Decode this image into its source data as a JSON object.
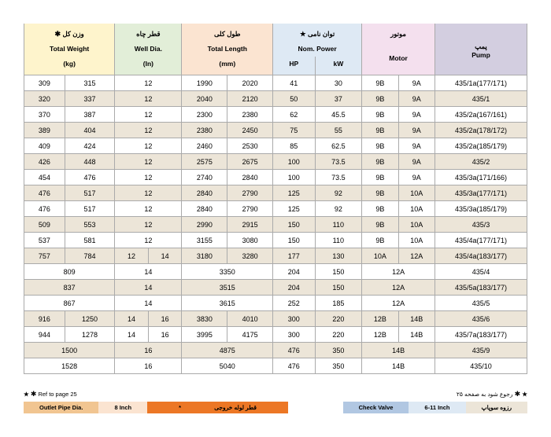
{
  "headers": {
    "weight_fa": "وزن کل",
    "weight_en": "Total Weight",
    "weight_unit": "(kg)",
    "welldia_fa": "قطر چاه",
    "welldia_en": "Well Dia.",
    "welldia_unit": "(In)",
    "length_fa": "طول کلی",
    "length_en": "Total Length",
    "length_unit": "(mm)",
    "power_fa": "توان نامی",
    "power_en": "Nom. Power",
    "power_hp": "HP",
    "power_kw": "kW",
    "motor_fa": "موتور",
    "motor_en": "Motor",
    "pump_fa": "پمپ",
    "pump_en": "Pump",
    "gear": "✱",
    "star": "★"
  },
  "rows": [
    {
      "w": [
        "309",
        "315"
      ],
      "d": [
        "12"
      ],
      "l": [
        "1990",
        "2020"
      ],
      "hp": "41",
      "kw": "30",
      "m": [
        "9B",
        "9A"
      ],
      "p": "435/1a(177/171)"
    },
    {
      "w": [
        "320",
        "337"
      ],
      "d": [
        "12"
      ],
      "l": [
        "2040",
        "2120"
      ],
      "hp": "50",
      "kw": "37",
      "m": [
        "9B",
        "9A"
      ],
      "p": "435/1"
    },
    {
      "w": [
        "370",
        "387"
      ],
      "d": [
        "12"
      ],
      "l": [
        "2300",
        "2380"
      ],
      "hp": "62",
      "kw": "45.5",
      "m": [
        "9B",
        "9A"
      ],
      "p": "435/2a(167/161)"
    },
    {
      "w": [
        "389",
        "404"
      ],
      "d": [
        "12"
      ],
      "l": [
        "2380",
        "2450"
      ],
      "hp": "75",
      "kw": "55",
      "m": [
        "9B",
        "9A"
      ],
      "p": "435/2a(178/172)"
    },
    {
      "w": [
        "409",
        "424"
      ],
      "d": [
        "12"
      ],
      "l": [
        "2460",
        "2530"
      ],
      "hp": "85",
      "kw": "62.5",
      "m": [
        "9B",
        "9A"
      ],
      "p": "435/2a(185/179)"
    },
    {
      "w": [
        "426",
        "448"
      ],
      "d": [
        "12"
      ],
      "l": [
        "2575",
        "2675"
      ],
      "hp": "100",
      "kw": "73.5",
      "m": [
        "9B",
        "9A"
      ],
      "p": "435/2"
    },
    {
      "w": [
        "454",
        "476"
      ],
      "d": [
        "12"
      ],
      "l": [
        "2740",
        "2840"
      ],
      "hp": "100",
      "kw": "73.5",
      "m": [
        "9B",
        "9A"
      ],
      "p": "435/3a(171/166)"
    },
    {
      "w": [
        "476",
        "517"
      ],
      "d": [
        "12"
      ],
      "l": [
        "2840",
        "2790"
      ],
      "hp": "125",
      "kw": "92",
      "m": [
        "9B",
        "10A"
      ],
      "p": "435/3a(177/171)"
    },
    {
      "w": [
        "476",
        "517"
      ],
      "d": [
        "12"
      ],
      "l": [
        "2840",
        "2790"
      ],
      "hp": "125",
      "kw": "92",
      "m": [
        "9B",
        "10A"
      ],
      "p": "435/3a(185/179)"
    },
    {
      "w": [
        "509",
        "553"
      ],
      "d": [
        "12"
      ],
      "l": [
        "2990",
        "2915"
      ],
      "hp": "150",
      "kw": "110",
      "m": [
        "9B",
        "10A"
      ],
      "p": "435/3"
    },
    {
      "w": [
        "537",
        "581"
      ],
      "d": [
        "12"
      ],
      "l": [
        "3155",
        "3080"
      ],
      "hp": "150",
      "kw": "110",
      "m": [
        "9B",
        "10A"
      ],
      "p": "435/4a(177/171)"
    },
    {
      "w": [
        "757",
        "784"
      ],
      "d": [
        "12",
        "14"
      ],
      "l": [
        "3180",
        "3280"
      ],
      "hp": "177",
      "kw": "130",
      "m": [
        "10A",
        "12A"
      ],
      "p": "435/4a(183/177)"
    },
    {
      "w": [
        "809"
      ],
      "d": [
        "14"
      ],
      "l": [
        "3350"
      ],
      "hp": "204",
      "kw": "150",
      "m": [
        "12A"
      ],
      "p": "435/4"
    },
    {
      "w": [
        "837"
      ],
      "d": [
        "14"
      ],
      "l": [
        "3515"
      ],
      "hp": "204",
      "kw": "150",
      "m": [
        "12A"
      ],
      "p": "435/5a(183/177)"
    },
    {
      "w": [
        "867"
      ],
      "d": [
        "14"
      ],
      "l": [
        "3615"
      ],
      "hp": "252",
      "kw": "185",
      "m": [
        "12A"
      ],
      "p": "435/5"
    },
    {
      "w": [
        "916",
        "1250"
      ],
      "d": [
        "14",
        "16"
      ],
      "l": [
        "3830",
        "4010"
      ],
      "hp": "300",
      "kw": "220",
      "m": [
        "12B",
        "14B"
      ],
      "p": "435/6"
    },
    {
      "w": [
        "944",
        "1278"
      ],
      "d": [
        "14",
        "16"
      ],
      "l": [
        "3995",
        "4175"
      ],
      "hp": "300",
      "kw": "220",
      "m": [
        "12B",
        "14B"
      ],
      "p": "435/7a(183/177)"
    },
    {
      "w": [
        "1500"
      ],
      "d": [
        "16"
      ],
      "l": [
        "4875"
      ],
      "hp": "476",
      "kw": "350",
      "m": [
        "14B"
      ],
      "p": "435/9"
    },
    {
      "w": [
        "1528"
      ],
      "d": [
        "16"
      ],
      "l": [
        "5040"
      ],
      "hp": "476",
      "kw": "350",
      "m": [
        "14B"
      ],
      "p": "435/10"
    }
  ],
  "footer": {
    "left_note": "Ref to page 25",
    "right_note": "رجوع شود به صفحه ۲۵",
    "outlet_label": "Outlet Pipe Dia.",
    "outlet_val": "8 Inch",
    "outlet_fa": "قطر لوله خروجی",
    "outlet_star": "*",
    "valve_label": "Check Valve",
    "valve_val": "6-11 Inch",
    "valve_fa": "رزوه سوپاپ"
  }
}
